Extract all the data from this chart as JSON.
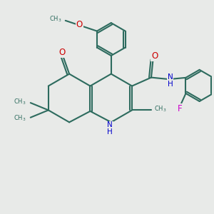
{
  "bg_color": "#e8eae8",
  "bond_color": "#2d6b5e",
  "bond_width": 1.5,
  "atom_colors": {
    "O": "#cc0000",
    "N": "#0000cc",
    "F": "#cc00cc",
    "C": "#2d6b5e"
  },
  "figsize": [
    3.0,
    3.0
  ],
  "dpi": 100
}
